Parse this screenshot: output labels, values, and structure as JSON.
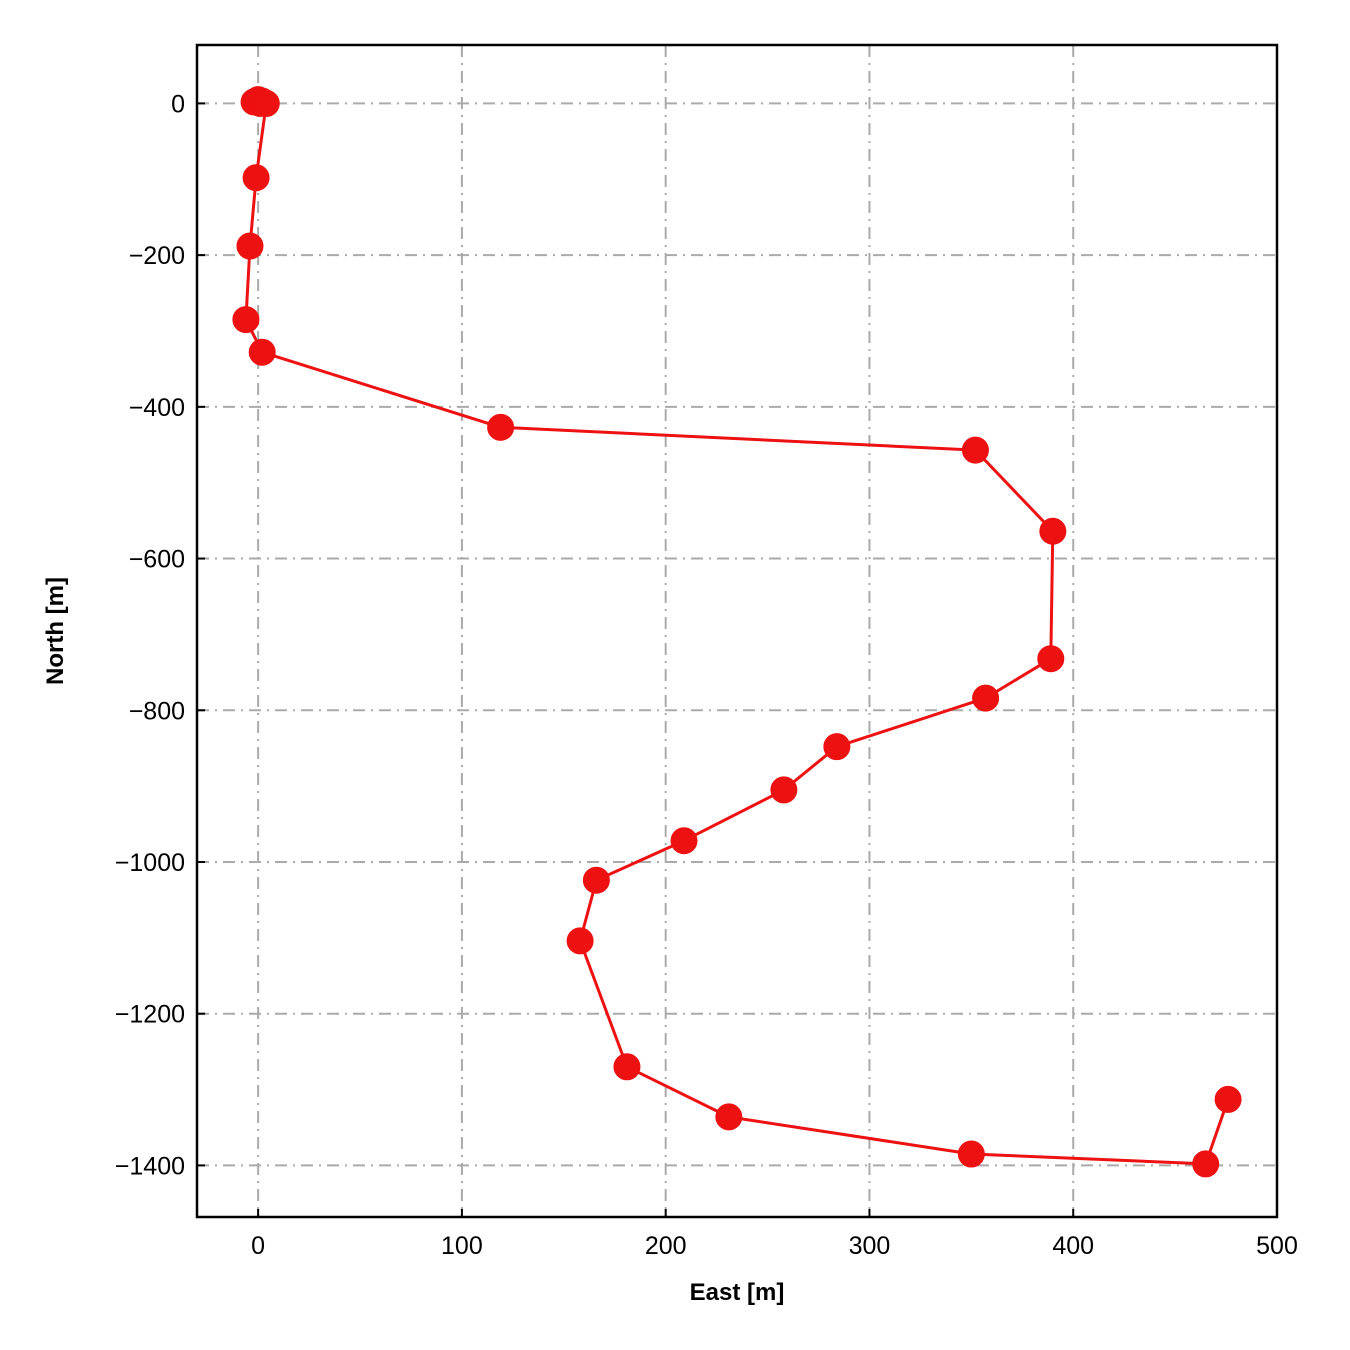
{
  "chart_data": {
    "type": "line",
    "title": "",
    "xlabel": "East [m]",
    "ylabel": "North [m]",
    "xlim": [
      -30,
      500
    ],
    "ylim": [
      -1468,
      77
    ],
    "xticks": [
      0,
      100,
      200,
      300,
      400,
      500
    ],
    "yticks": [
      0,
      -200,
      -400,
      -600,
      -800,
      -1000,
      -1200,
      -1400
    ],
    "grid": true,
    "legend": "none",
    "series": [
      {
        "color": "#ee1111",
        "x": [
          1,
          -2,
          0,
          2,
          4,
          -1,
          -4,
          -6,
          2,
          119,
          352,
          390,
          389,
          357,
          284,
          258,
          209,
          166,
          158,
          181,
          231,
          350,
          465,
          476
        ],
        "y": [
          0,
          2,
          5,
          3,
          0,
          -98,
          -188,
          -285,
          -328,
          -427,
          -457,
          -564,
          -732,
          -784,
          -848,
          -905,
          -972,
          -1024,
          -1104,
          -1270,
          -1336,
          -1385,
          -1398,
          -1313
        ]
      }
    ]
  }
}
